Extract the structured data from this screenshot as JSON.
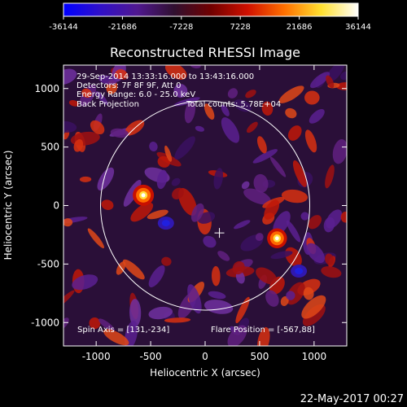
{
  "chart_data": {
    "type": "heatmap",
    "title": "Reconstructed RHESSI Image",
    "xlabel": "Heliocentric X (arcsec)",
    "ylabel": "Heliocentric Y (arcsec)",
    "xlim": [
      -1300,
      1300
    ],
    "ylim": [
      -1200,
      1200
    ],
    "x_ticks": [
      -1000,
      -500,
      0,
      500,
      1000
    ],
    "y_ticks": [
      1000,
      500,
      0,
      -500,
      -1000
    ],
    "x_tick_labels": [
      "-1000",
      "-500",
      "0",
      "500",
      "1000"
    ],
    "y_tick_labels": [
      "1000",
      "500",
      "0",
      "-500",
      "-1000"
    ],
    "colorbar": {
      "min": -36144,
      "max": 36144,
      "ticks": [
        -36144,
        -21686,
        -7228,
        7228,
        21686,
        36144
      ],
      "tick_labels": [
        "-36144",
        "-21686",
        "-7228",
        "7228",
        "21686",
        "36144"
      ],
      "colors": [
        "#0000ff",
        "#3010c8",
        "#501890",
        "#301030",
        "#700000",
        "#d01000",
        "#ff7000",
        "#ffe030",
        "#ffffff"
      ]
    },
    "sources": [
      {
        "x": -567,
        "y": 88,
        "sign": "positive",
        "peak": 36144
      },
      {
        "x": 660,
        "y": -280,
        "sign": "positive",
        "peak": 34000
      },
      {
        "x": -360,
        "y": -150,
        "sign": "negative",
        "peak": -20000
      },
      {
        "x": 860,
        "y": -560,
        "sign": "negative",
        "peak": -18000
      }
    ],
    "solar_disk": {
      "center": [
        0,
        0
      ],
      "radius_arcsec": 960
    },
    "spin_axis": [
      131,
      -234
    ],
    "grid": false
  },
  "annotations": {
    "time_range": "29-Sep-2014 13:33:16.000 to 13:43:16.000",
    "detectors": "Detectors: 7F 8F 9F, Att 0",
    "energy": "Energy Range: 6.0 - 25.0 keV",
    "method": "Back Projection",
    "counts": "Total counts: 5.78E+04",
    "spin_axis_label": "Spin Axis = [131,-234]",
    "flare_position_label": "Flare Position = [-567,88]"
  },
  "footer": {
    "date": "22-May-2017 00:27"
  }
}
